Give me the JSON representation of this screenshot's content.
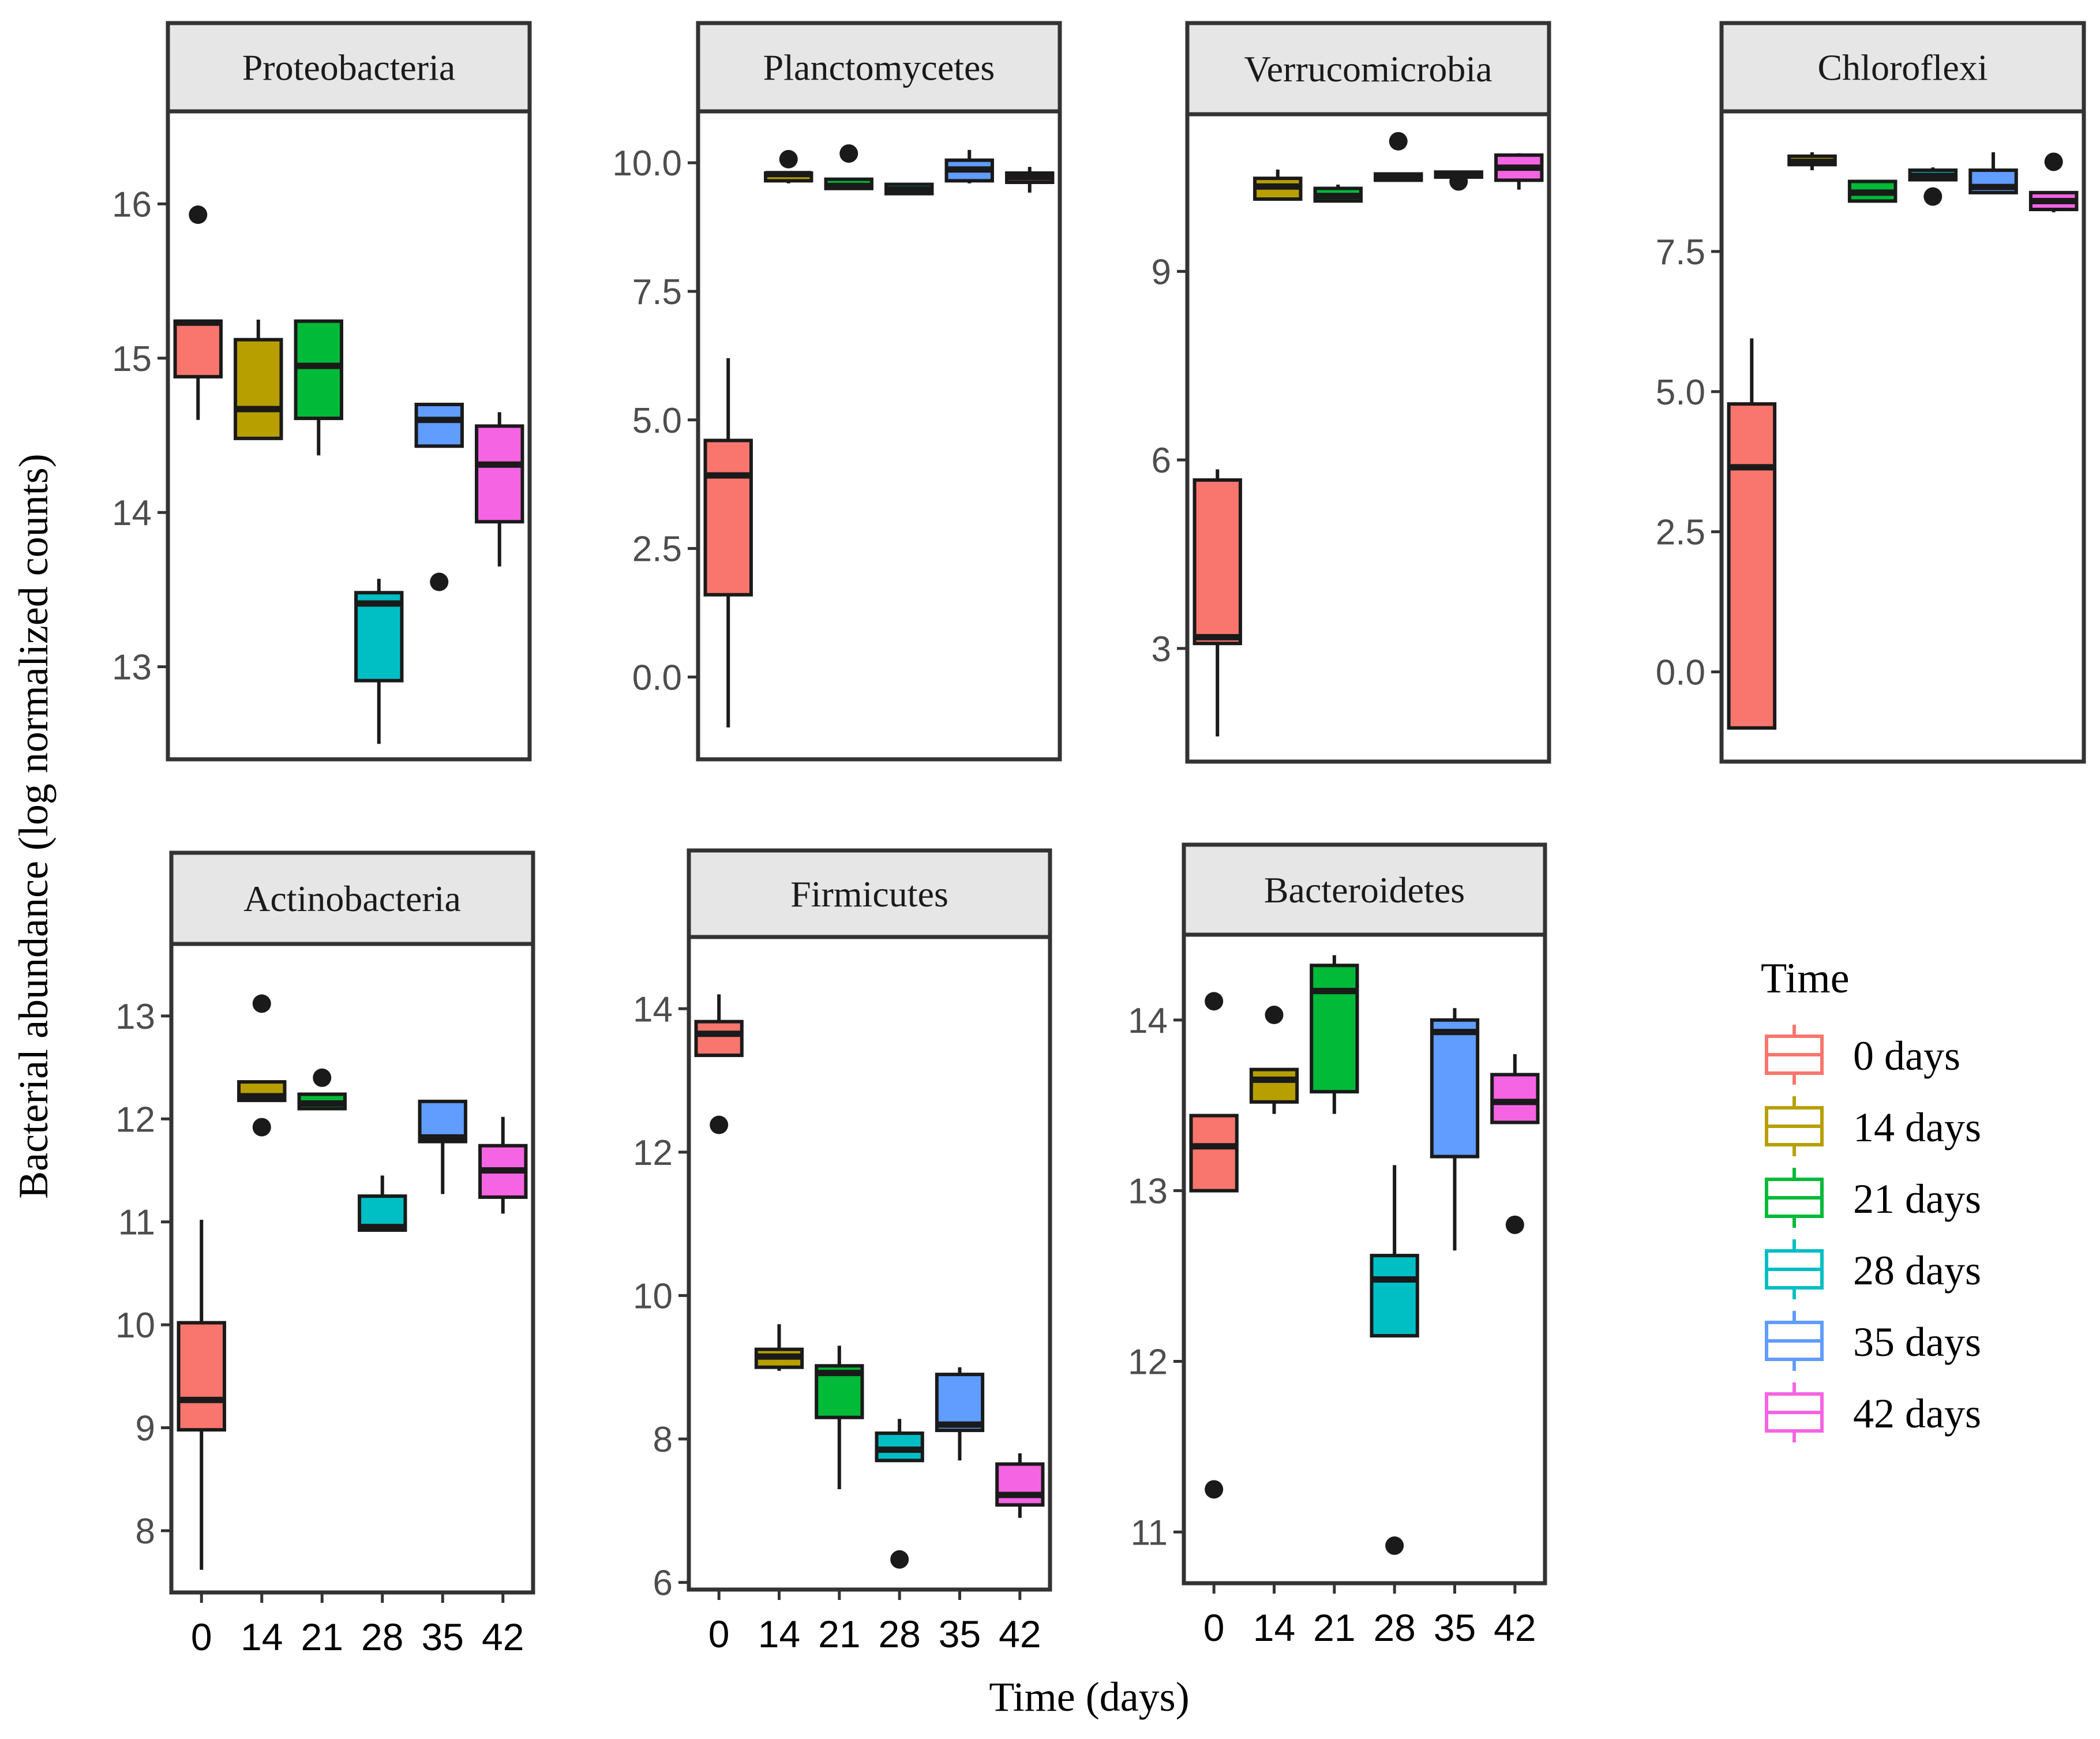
{
  "chart_data": {
    "type": "boxplot",
    "xlabel": "Time (days)",
    "ylabel": "Bacterial abundance (log normalized counts)",
    "categories": [
      "0",
      "14",
      "21",
      "28",
      "35",
      "42"
    ],
    "legend": {
      "title": "Time",
      "position": "right",
      "items": [
        {
          "label": "0 days",
          "color": "#F8766D"
        },
        {
          "label": "14 days",
          "color": "#B79F00"
        },
        {
          "label": "21 days",
          "color": "#00BA38"
        },
        {
          "label": "28 days",
          "color": "#00BFC4"
        },
        {
          "label": "35 days",
          "color": "#619CFF"
        },
        {
          "label": "42 days",
          "color": "#F564E3"
        }
      ]
    },
    "panels": [
      {
        "title": "Proteobacteria",
        "ylim": [
          12.4,
          16.6
        ],
        "yticks": [
          {
            "v": 13,
            "label": "13"
          },
          {
            "v": 14,
            "label": "14"
          },
          {
            "v": 15,
            "label": "15"
          },
          {
            "v": 16,
            "label": "16"
          }
        ],
        "boxes": [
          {
            "min": 14.6,
            "q1": 14.88,
            "median": 15.23,
            "q3": 15.24,
            "max": 15.24,
            "outliers": [
              15.93
            ]
          },
          {
            "min": 14.48,
            "q1": 14.48,
            "median": 14.67,
            "q3": 15.12,
            "max": 15.25,
            "outliers": []
          },
          {
            "min": 14.37,
            "q1": 14.61,
            "median": 14.95,
            "q3": 15.24,
            "max": 15.24,
            "outliers": []
          },
          {
            "min": 12.5,
            "q1": 12.91,
            "median": 13.41,
            "q3": 13.48,
            "max": 13.57,
            "outliers": []
          },
          {
            "min": 14.43,
            "q1": 14.43,
            "median": 14.6,
            "q3": 14.7,
            "max": 14.71,
            "outliers": [
              13.55
            ]
          },
          {
            "min": 13.65,
            "q1": 13.94,
            "median": 14.31,
            "q3": 14.56,
            "max": 14.65,
            "outliers": []
          }
        ]
      },
      {
        "title": "Planctomycetes",
        "ylim": [
          -1.6,
          11.0
        ],
        "yticks": [
          {
            "v": 0,
            "label": "0.0"
          },
          {
            "v": 2.5,
            "label": "2.5"
          },
          {
            "v": 5,
            "label": "5.0"
          },
          {
            "v": 7.5,
            "label": "7.5"
          },
          {
            "v": 10,
            "label": "10.0"
          }
        ],
        "boxes": [
          {
            "min": -0.98,
            "q1": 1.6,
            "median": 3.92,
            "q3": 4.6,
            "max": 6.2,
            "outliers": []
          },
          {
            "min": 9.6,
            "q1": 9.65,
            "median": 9.78,
            "q3": 9.8,
            "max": 9.8,
            "outliers": [
              10.07
            ]
          },
          {
            "min": 9.5,
            "q1": 9.5,
            "median": 9.55,
            "q3": 9.68,
            "max": 9.68,
            "outliers": [
              10.18
            ]
          },
          {
            "min": 9.4,
            "q1": 9.4,
            "median": 9.48,
            "q3": 9.58,
            "max": 9.58,
            "outliers": []
          },
          {
            "min": 9.6,
            "q1": 9.65,
            "median": 9.87,
            "q3": 10.05,
            "max": 10.25,
            "outliers": []
          },
          {
            "min": 9.42,
            "q1": 9.62,
            "median": 9.72,
            "q3": 9.8,
            "max": 9.92,
            "outliers": []
          }
        ]
      },
      {
        "title": "Verrucomicrobia",
        "ylim": [
          1.2,
          11.5
        ],
        "yticks": [
          {
            "v": 3,
            "label": "3"
          },
          {
            "v": 6,
            "label": "6"
          },
          {
            "v": 9,
            "label": "9"
          }
        ],
        "boxes": [
          {
            "min": 1.6,
            "q1": 3.08,
            "median": 3.18,
            "q3": 5.68,
            "max": 5.85,
            "outliers": []
          },
          {
            "min": 10.15,
            "q1": 10.15,
            "median": 10.35,
            "q3": 10.48,
            "max": 10.62,
            "outliers": []
          },
          {
            "min": 10.1,
            "q1": 10.12,
            "median": 10.2,
            "q3": 10.32,
            "max": 10.38,
            "outliers": []
          },
          {
            "min": 10.45,
            "q1": 10.45,
            "median": 10.5,
            "q3": 10.55,
            "max": 10.55,
            "outliers": [
              11.07
            ]
          },
          {
            "min": 10.5,
            "q1": 10.5,
            "median": 10.53,
            "q3": 10.58,
            "max": 10.58,
            "outliers": [
              10.43
            ]
          },
          {
            "min": 10.3,
            "q1": 10.45,
            "median": 10.65,
            "q3": 10.85,
            "max": 10.88,
            "outliers": []
          }
        ]
      },
      {
        "title": "Chloroflexi",
        "ylim": [
          -1.6,
          10.0
        ],
        "yticks": [
          {
            "v": 0,
            "label": "0.0"
          },
          {
            "v": 2.5,
            "label": "2.5"
          },
          {
            "v": 5,
            "label": "5.0"
          },
          {
            "v": 7.5,
            "label": "7.5"
          }
        ],
        "boxes": [
          {
            "min": -1.0,
            "q1": -1.0,
            "median": 3.65,
            "q3": 4.78,
            "max": 5.95,
            "outliers": []
          },
          {
            "min": 8.95,
            "q1": 9.05,
            "median": 9.1,
            "q3": 9.2,
            "max": 9.27,
            "outliers": []
          },
          {
            "min": 8.4,
            "q1": 8.4,
            "median": 8.55,
            "q3": 8.75,
            "max": 8.75,
            "outliers": []
          },
          {
            "min": 8.78,
            "q1": 8.78,
            "median": 8.85,
            "q3": 8.95,
            "max": 9.0,
            "outliers": [
              8.48
            ]
          },
          {
            "min": 8.55,
            "q1": 8.55,
            "median": 8.65,
            "q3": 8.95,
            "max": 9.27,
            "outliers": []
          },
          {
            "min": 8.2,
            "q1": 8.25,
            "median": 8.4,
            "q3": 8.55,
            "max": 8.55,
            "outliers": [
              9.1
            ]
          }
        ]
      },
      {
        "title": "Actinobacteria",
        "ylim": [
          7.4,
          13.7
        ],
        "yticks": [
          {
            "v": 8,
            "label": "8"
          },
          {
            "v": 9,
            "label": "9"
          },
          {
            "v": 10,
            "label": "10"
          },
          {
            "v": 11,
            "label": "11"
          },
          {
            "v": 12,
            "label": "12"
          },
          {
            "v": 13,
            "label": "13"
          }
        ],
        "boxes": [
          {
            "min": 7.62,
            "q1": 8.98,
            "median": 9.27,
            "q3": 10.02,
            "max": 11.02,
            "outliers": []
          },
          {
            "min": 12.18,
            "q1": 12.18,
            "median": 12.22,
            "q3": 12.36,
            "max": 12.36,
            "outliers": [
              13.12,
              11.92
            ]
          },
          {
            "min": 12.1,
            "q1": 12.1,
            "median": 12.15,
            "q3": 12.24,
            "max": 12.24,
            "outliers": [
              12.4
            ]
          },
          {
            "min": 10.92,
            "q1": 10.92,
            "median": 10.95,
            "q3": 11.25,
            "max": 11.45,
            "outliers": []
          },
          {
            "min": 11.27,
            "q1": 11.78,
            "median": 11.82,
            "q3": 12.17,
            "max": 12.17,
            "outliers": []
          },
          {
            "min": 11.08,
            "q1": 11.24,
            "median": 11.5,
            "q3": 11.74,
            "max": 12.02,
            "outliers": []
          }
        ]
      },
      {
        "title": "Firmicutes",
        "ylim": [
          5.9,
          15.0
        ],
        "yticks": [
          {
            "v": 6,
            "label": "6"
          },
          {
            "v": 8,
            "label": "8"
          },
          {
            "v": 10,
            "label": "10"
          },
          {
            "v": 12,
            "label": "12"
          },
          {
            "v": 14,
            "label": "14"
          }
        ],
        "boxes": [
          {
            "min": 13.35,
            "q1": 13.35,
            "median": 13.65,
            "q3": 13.82,
            "max": 14.2,
            "outliers": [
              12.38
            ]
          },
          {
            "min": 8.95,
            "q1": 9.0,
            "median": 9.15,
            "q3": 9.25,
            "max": 9.6,
            "outliers": []
          },
          {
            "min": 7.3,
            "q1": 8.3,
            "median": 8.92,
            "q3": 9.02,
            "max": 9.3,
            "outliers": []
          },
          {
            "min": 7.7,
            "q1": 7.7,
            "median": 7.85,
            "q3": 8.08,
            "max": 8.28,
            "outliers": [
              6.32
            ]
          },
          {
            "min": 7.7,
            "q1": 8.12,
            "median": 8.2,
            "q3": 8.9,
            "max": 9.0,
            "outliers": []
          },
          {
            "min": 6.9,
            "q1": 7.08,
            "median": 7.22,
            "q3": 7.65,
            "max": 7.8,
            "outliers": []
          }
        ]
      },
      {
        "title": "Bacteroidetes",
        "ylim": [
          10.7,
          14.5
        ],
        "yticks": [
          {
            "v": 11,
            "label": "11"
          },
          {
            "v": 12,
            "label": "12"
          },
          {
            "v": 13,
            "label": "13"
          },
          {
            "v": 14,
            "label": "14"
          }
        ],
        "boxes": [
          {
            "min": 13.0,
            "q1": 13.0,
            "median": 13.26,
            "q3": 13.44,
            "max": 13.44,
            "outliers": [
              14.11,
              11.25
            ]
          },
          {
            "min": 13.45,
            "q1": 13.52,
            "median": 13.65,
            "q3": 13.71,
            "max": 13.71,
            "outliers": [
              14.03
            ]
          },
          {
            "min": 13.45,
            "q1": 13.58,
            "median": 14.17,
            "q3": 14.32,
            "max": 14.38,
            "outliers": []
          },
          {
            "min": 12.15,
            "q1": 12.15,
            "median": 12.48,
            "q3": 12.62,
            "max": 13.15,
            "outliers": [
              10.92
            ]
          },
          {
            "min": 12.65,
            "q1": 13.2,
            "median": 13.93,
            "q3": 14.0,
            "max": 14.07,
            "outliers": []
          },
          {
            "min": 13.4,
            "q1": 13.4,
            "median": 13.52,
            "q3": 13.68,
            "max": 13.8,
            "outliers": [
              12.8
            ]
          }
        ]
      }
    ]
  }
}
